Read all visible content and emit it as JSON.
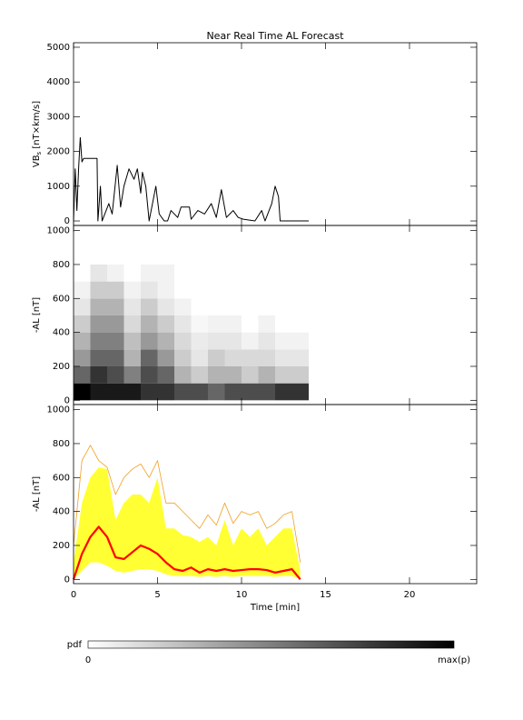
{
  "chart_data": [
    {
      "type": "line",
      "title": "Near Real Time AL Forecast",
      "ylabel": {
        "main": "VB",
        "sub": "s",
        "unit": " [nT×km/s]"
      },
      "color": "#000000",
      "x": [
        0,
        0.1,
        0.2,
        0.3,
        0.4,
        0.5,
        0.6,
        1.4,
        1.45,
        1.6,
        1.7,
        2.1,
        2.3,
        2.6,
        2.8,
        3.0,
        3.3,
        3.6,
        3.8,
        4.0,
        4.1,
        4.3,
        4.5,
        4.9,
        5.1,
        5.4,
        5.6,
        5.8,
        6.2,
        6.4,
        6.9,
        7.0,
        7.4,
        7.8,
        8.2,
        8.5,
        8.8,
        9.1,
        9.5,
        9.8,
        10.1,
        10.8,
        11.2,
        11.4,
        11.8,
        12.0,
        12.2,
        12.3,
        14.0
      ],
      "values": [
        0,
        1500,
        300,
        1500,
        2400,
        1700,
        1800,
        1800,
        0,
        1000,
        0,
        500,
        200,
        1600,
        400,
        1000,
        1500,
        1200,
        1500,
        800,
        1400,
        1000,
        0,
        1000,
        200,
        0,
        0,
        300,
        100,
        400,
        400,
        50,
        300,
        200,
        500,
        100,
        900,
        100,
        300,
        100,
        50,
        0,
        300,
        0,
        500,
        1000,
        700,
        0,
        0
      ],
      "xlim": [
        0,
        24
      ],
      "ylim": [
        -130,
        5130
      ],
      "yticks": [
        0,
        1000,
        2000,
        3000,
        4000,
        5000
      ]
    },
    {
      "type": "heatmap",
      "ylabel": "-AL [nT]",
      "x_bins": [
        0,
        1,
        2,
        3,
        4,
        5,
        6,
        7,
        8,
        9,
        10,
        11,
        12,
        13,
        14
      ],
      "y_bins": [
        0,
        100,
        200,
        300,
        400,
        500,
        600,
        700,
        800
      ],
      "z": [
        [
          1,
          0.9,
          0.9,
          0.9,
          0.8,
          0.8,
          0.7,
          0.7,
          0.6,
          0.7,
          0.7,
          0.7,
          0.8,
          0.8
        ],
        [
          0.6,
          0.8,
          0.7,
          0.5,
          0.7,
          0.6,
          0.3,
          0.2,
          0.3,
          0.3,
          0.2,
          0.3,
          0.2,
          0.2
        ],
        [
          0.4,
          0.6,
          0.6,
          0.3,
          0.6,
          0.4,
          0.2,
          0.1,
          0.2,
          0.15,
          0.15,
          0.15,
          0.1,
          0.1
        ],
        [
          0.3,
          0.5,
          0.5,
          0.25,
          0.4,
          0.3,
          0.15,
          0.08,
          0.1,
          0.1,
          0.05,
          0.1,
          0.05,
          0.05
        ],
        [
          0.2,
          0.4,
          0.4,
          0.15,
          0.3,
          0.2,
          0.1,
          0.03,
          0.05,
          0.05,
          0,
          0.05,
          0,
          0
        ],
        [
          0.1,
          0.3,
          0.3,
          0.1,
          0.2,
          0.1,
          0.05,
          0,
          0,
          0,
          0,
          0,
          0,
          0
        ],
        [
          0.05,
          0.2,
          0.2,
          0.05,
          0.1,
          0.05,
          0,
          0,
          0,
          0,
          0,
          0,
          0,
          0
        ],
        [
          0,
          0.1,
          0.05,
          0,
          0.05,
          0.05,
          0,
          0,
          0,
          0,
          0,
          0,
          0,
          0
        ]
      ],
      "xlim": [
        0,
        24
      ],
      "ylim": [
        -25,
        1030
      ],
      "yticks": [
        0,
        200,
        400,
        600,
        800,
        1000
      ]
    },
    {
      "type": "line",
      "ylabel": "-AL [nT]",
      "xlabel": "Time [min]",
      "x": [
        0,
        0.5,
        1,
        1.5,
        2,
        2.5,
        3,
        3.5,
        4,
        4.5,
        5,
        5.5,
        6,
        6.5,
        7,
        7.5,
        8,
        8.5,
        9,
        9.5,
        10,
        10.5,
        11,
        11.5,
        12,
        12.5,
        13,
        13.5
      ],
      "band": {
        "color": "#ffff33",
        "upper": [
          100,
          450,
          600,
          660,
          650,
          350,
          450,
          500,
          500,
          450,
          600,
          300,
          300,
          260,
          250,
          220,
          250,
          200,
          350,
          200,
          300,
          250,
          300,
          200,
          250,
          300,
          300,
          50
        ],
        "lower": [
          0,
          50,
          100,
          100,
          80,
          50,
          40,
          50,
          60,
          60,
          50,
          30,
          20,
          20,
          20,
          15,
          20,
          15,
          20,
          15,
          20,
          20,
          20,
          20,
          15,
          20,
          20,
          0
        ]
      },
      "series": [
        {
          "color": "#f0a020",
          "values": [
            200,
            700,
            790,
            700,
            660,
            500,
            600,
            650,
            680,
            600,
            700,
            450,
            450,
            400,
            350,
            300,
            380,
            320,
            450,
            330,
            400,
            380,
            400,
            300,
            330,
            380,
            400,
            100
          ]
        },
        {
          "color": "#ff0000",
          "values": [
            0,
            150,
            250,
            310,
            250,
            130,
            120,
            160,
            200,
            180,
            150,
            100,
            60,
            50,
            70,
            40,
            60,
            50,
            60,
            50,
            55,
            60,
            60,
            55,
            40,
            50,
            60,
            0
          ]
        }
      ],
      "xlim": [
        0,
        24
      ],
      "ylim": [
        -25,
        1030
      ],
      "yticks": [
        0,
        200,
        400,
        600,
        800,
        1000
      ],
      "xticks": [
        0,
        5,
        10,
        15,
        20
      ]
    }
  ],
  "colorbar": {
    "label": "pdf",
    "min_label": "0",
    "max_label": "max(p)"
  }
}
